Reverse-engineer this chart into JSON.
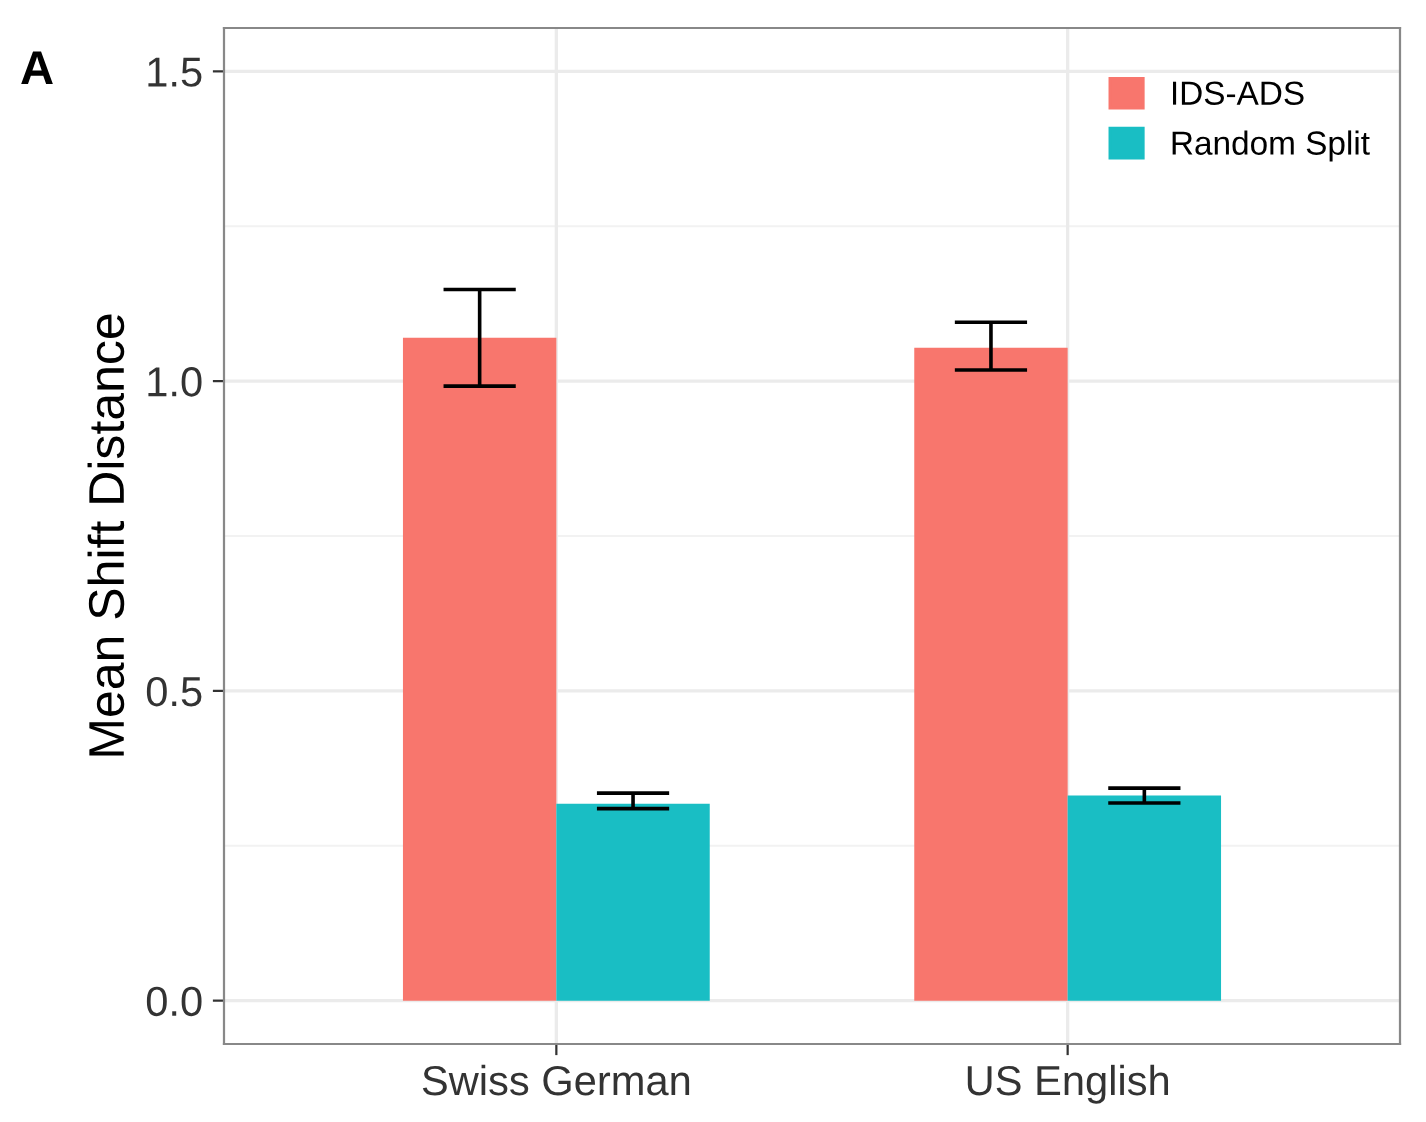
{
  "chart_data": {
    "type": "bar",
    "ylabel": "Mean Shift Distance",
    "annotations": [
      "A"
    ],
    "categories": [
      "Swiss German",
      "US English"
    ],
    "series": [
      {
        "name": "IDS-ADS",
        "color": "#f8766d",
        "values": [
          1.07,
          1.054
        ],
        "errors": [
          [
            0.992,
            1.148
          ],
          [
            1.018,
            1.095
          ]
        ]
      },
      {
        "name": "Random Split",
        "color": "#19bec4",
        "values": [
          0.318,
          0.331
        ],
        "errors": [
          [
            0.31,
            0.335
          ],
          [
            0.319,
            0.343
          ]
        ]
      }
    ],
    "ylim": [
      -0.07,
      1.57
    ],
    "yticks": [
      {
        "value": 0,
        "label": "0.0"
      },
      0.5,
      {
        "value": 1,
        "label": "1.0"
      },
      1.5
    ],
    "grid": true,
    "legend": "top right"
  }
}
